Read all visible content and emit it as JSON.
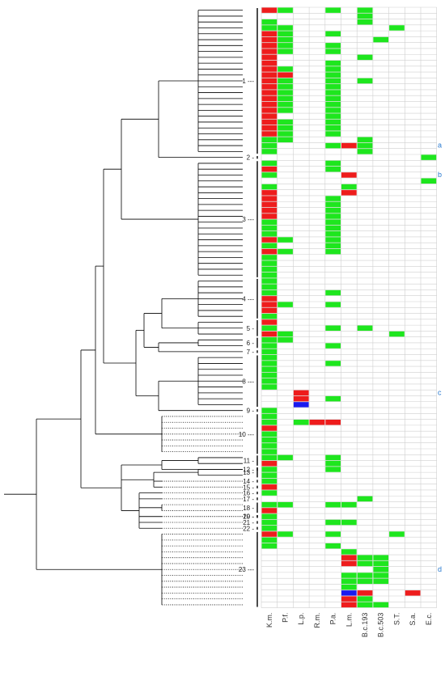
{
  "columns": [
    "K.m.",
    "P.f.",
    "L.p.",
    "R.m.",
    "P.a.",
    "L.m.",
    "B.c.193",
    "B.c.503",
    "S.T.",
    "S.a.",
    "E.c."
  ],
  "cluster_labels": [
    "1",
    "2",
    "3",
    "4",
    "5",
    "6",
    "7",
    "8",
    "9",
    "10",
    "11",
    "12",
    "13",
    "14",
    "15",
    "16",
    "17",
    "18",
    "19",
    "20",
    "21",
    "22",
    "23"
  ],
  "side_labels": [
    "a",
    "b",
    "c",
    "d"
  ],
  "colors": {
    "red": "#ee1c1c",
    "green": "#1ee61e",
    "blue": "#1a1aee",
    "grid": "#cfcfcf",
    "tree": "#000000",
    "side_label": "#2b7bd0"
  },
  "heatmap_rows": [
    "RG..G.G....",
    "......G....",
    "G.....G....",
    "GG......G..",
    "RG..G......",
    "RG.....G...",
    "RG..G......",
    "RG..G......",
    "R.....G....",
    "R...G......",
    "RG..G......",
    "RR..G......",
    "RG..G.G....",
    "RG..G......",
    "RG..G......",
    "RG..G......",
    "RG..G......",
    "RG..G......",
    "R...G......",
    "RG..G......",
    "RG..G......",
    "RG..G......",
    "GG....G....",
    "G...GRG....",
    "G.....G....",
    "..........G",
    "G...G......",
    "R...G......",
    "G....R.....",
    "..........G",
    "G....G.....",
    "R....R.....",
    "R...G......",
    "R...G......",
    "R...G......",
    "R...G......",
    "G...G......",
    "G...G......",
    "G...G......",
    "RG..G......",
    "G...G......",
    "RG..G......",
    "G..........",
    "G..........",
    "G..........",
    "G..........",
    "G..........",
    "G..........",
    "G...G......",
    "R..........",
    "RG..G......",
    "R..........",
    "G..........",
    "R..........",
    "G...G.G....",
    "RG......G..",
    "GG.........",
    "G...G......",
    "G..........",
    "G..........",
    "G...G......",
    "G..........",
    "G..........",
    "G..........",
    "G..........",
    "..R........",
    "..R.G......",
    "..B........",
    "G..........",
    "G..........",
    "G.GRR......",
    "R..........",
    "G..........",
    "G..........",
    "G..........",
    "G..........",
    "GG..G......",
    "R...G......",
    "G...G......",
    "G..........",
    "G..........",
    "R..........",
    "G..........",
    "......G....",
    "GG..GG.....",
    "R..........",
    "G..........",
    "G...GG.....",
    "G..........",
    "RG..G...G..",
    "G..........",
    "G...G......",
    ".....G.....",
    ".....RGG...",
    ".....RGG...",
    ".......G...",
    ".....GGG...",
    ".....GGG...",
    ".....G.....",
    ".....BR..R.",
    ".....RG....",
    ".....RGG..."
  ]
}
